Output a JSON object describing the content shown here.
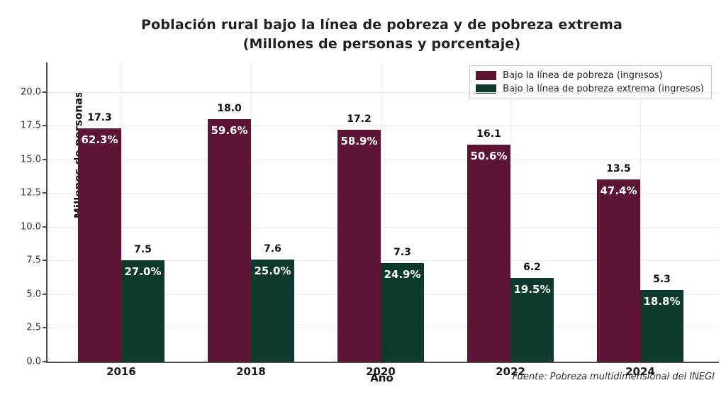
{
  "title": "Población rural bajo la línea de pobreza y de pobreza extrema\n(Millones de personas y porcentaje)",
  "chart_data": {
    "type": "bar",
    "categories": [
      "2016",
      "2018",
      "2020",
      "2022",
      "2024"
    ],
    "series": [
      {
        "name": "Bajo la línea de pobreza (ingresos)",
        "color": "#5e1434",
        "values": [
          17.3,
          18.0,
          17.2,
          16.1,
          13.5
        ],
        "value_labels": [
          "17.3",
          "18.0",
          "17.2",
          "16.1",
          "13.5"
        ],
        "pct_labels": [
          "62.3%",
          "59.6%",
          "58.9%",
          "50.6%",
          "47.4%"
        ]
      },
      {
        "name": "Bajo la línea de pobreza extrema (ingresos)",
        "color": "#0d3a2c",
        "values": [
          7.5,
          7.6,
          7.3,
          6.2,
          5.3
        ],
        "value_labels": [
          "7.5",
          "7.6",
          "7.3",
          "6.2",
          "5.3"
        ],
        "pct_labels": [
          "27.0%",
          "25.0%",
          "24.9%",
          "19.5%",
          "18.8%"
        ]
      }
    ],
    "xlabel": "Año",
    "ylabel": "Millones de personas",
    "ylim": [
      0,
      22.2
    ],
    "yticks": [
      0.0,
      2.5,
      5.0,
      7.5,
      10.0,
      12.5,
      15.0,
      17.5,
      20.0
    ],
    "grid": true,
    "legend_position": "upper right",
    "source": "Fuente: Pobreza multidimensional del INEGI"
  }
}
